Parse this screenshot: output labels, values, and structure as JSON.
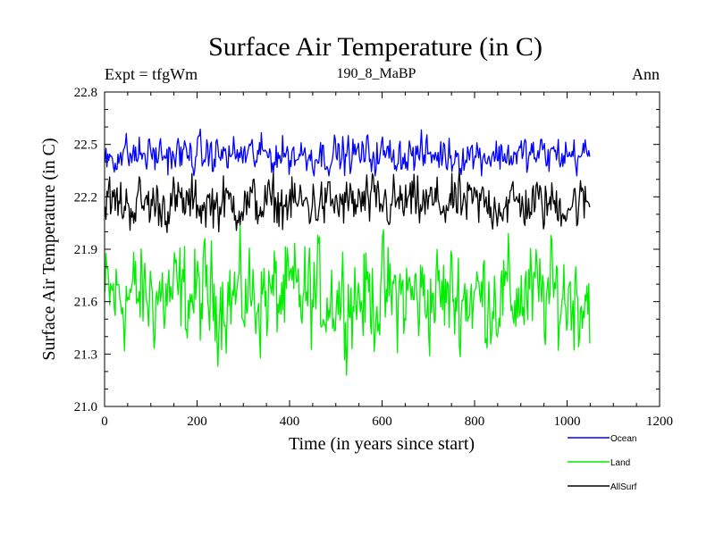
{
  "chart_data": {
    "type": "line",
    "title": "Surface Air Temperature (in C)",
    "subtitle": "190_8_MaBP",
    "left_label": "Expt = tfgWm",
    "right_label": "Ann",
    "xlabel": "Time (in years since start)",
    "ylabel": "Surface Air Temperature (in C)",
    "xlim": [
      0,
      1200
    ],
    "ylim": [
      21.0,
      22.8
    ],
    "x_ticks": [
      0,
      200,
      400,
      600,
      800,
      1000,
      1200
    ],
    "x_tick_labels": [
      "0",
      "200",
      "400",
      "600",
      "800",
      "1000",
      "1200"
    ],
    "y_ticks": [
      21.0,
      21.3,
      21.6,
      21.9,
      22.2,
      22.5,
      22.8
    ],
    "y_tick_labels": [
      "21.0",
      "21.3",
      "21.6",
      "21.9",
      "22.2",
      "22.5",
      "22.8"
    ],
    "x_range": [
      1,
      1050
    ],
    "series": [
      {
        "name": "Ocean",
        "color": "#0000ff",
        "mean": 22.44,
        "noise": 0.05,
        "min": 22.32,
        "max": 22.62
      },
      {
        "name": "Land",
        "color": "#00ee00",
        "mean": 21.63,
        "noise": 0.14,
        "min": 21.13,
        "max": 22.22
      },
      {
        "name": "AllSurf",
        "color": "#000000",
        "mean": 22.16,
        "noise": 0.07,
        "min": 21.95,
        "max": 22.38
      }
    ],
    "legend": [
      "Ocean",
      "Land",
      "AllSurf"
    ],
    "legend_position": "bottom-right"
  }
}
